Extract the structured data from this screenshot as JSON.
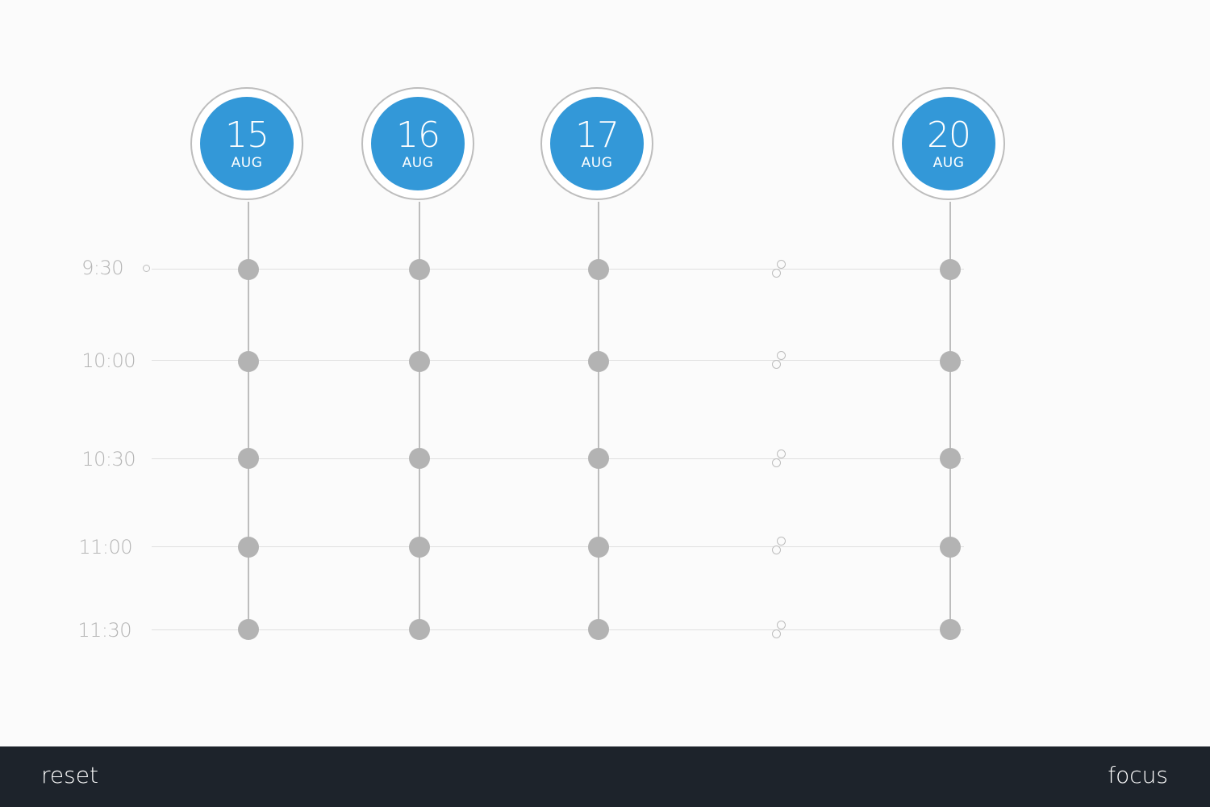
{
  "columns": [
    {
      "day": "15",
      "month": "AUG"
    },
    {
      "day": "16",
      "month": "AUG"
    },
    {
      "day": "17",
      "month": "AUG"
    },
    {
      "day": "20",
      "month": "AUG"
    }
  ],
  "times": [
    "9:30",
    "10:00",
    "10:30",
    "11:00",
    "11:30"
  ],
  "footer": {
    "reset_label": "reset",
    "focus_label": "focus"
  },
  "colors": {
    "date_disc": "#3398d8",
    "slot_dot": "#b3b3b3",
    "footer_bg": "#1d232b",
    "time_label": "#b5b5b5"
  }
}
